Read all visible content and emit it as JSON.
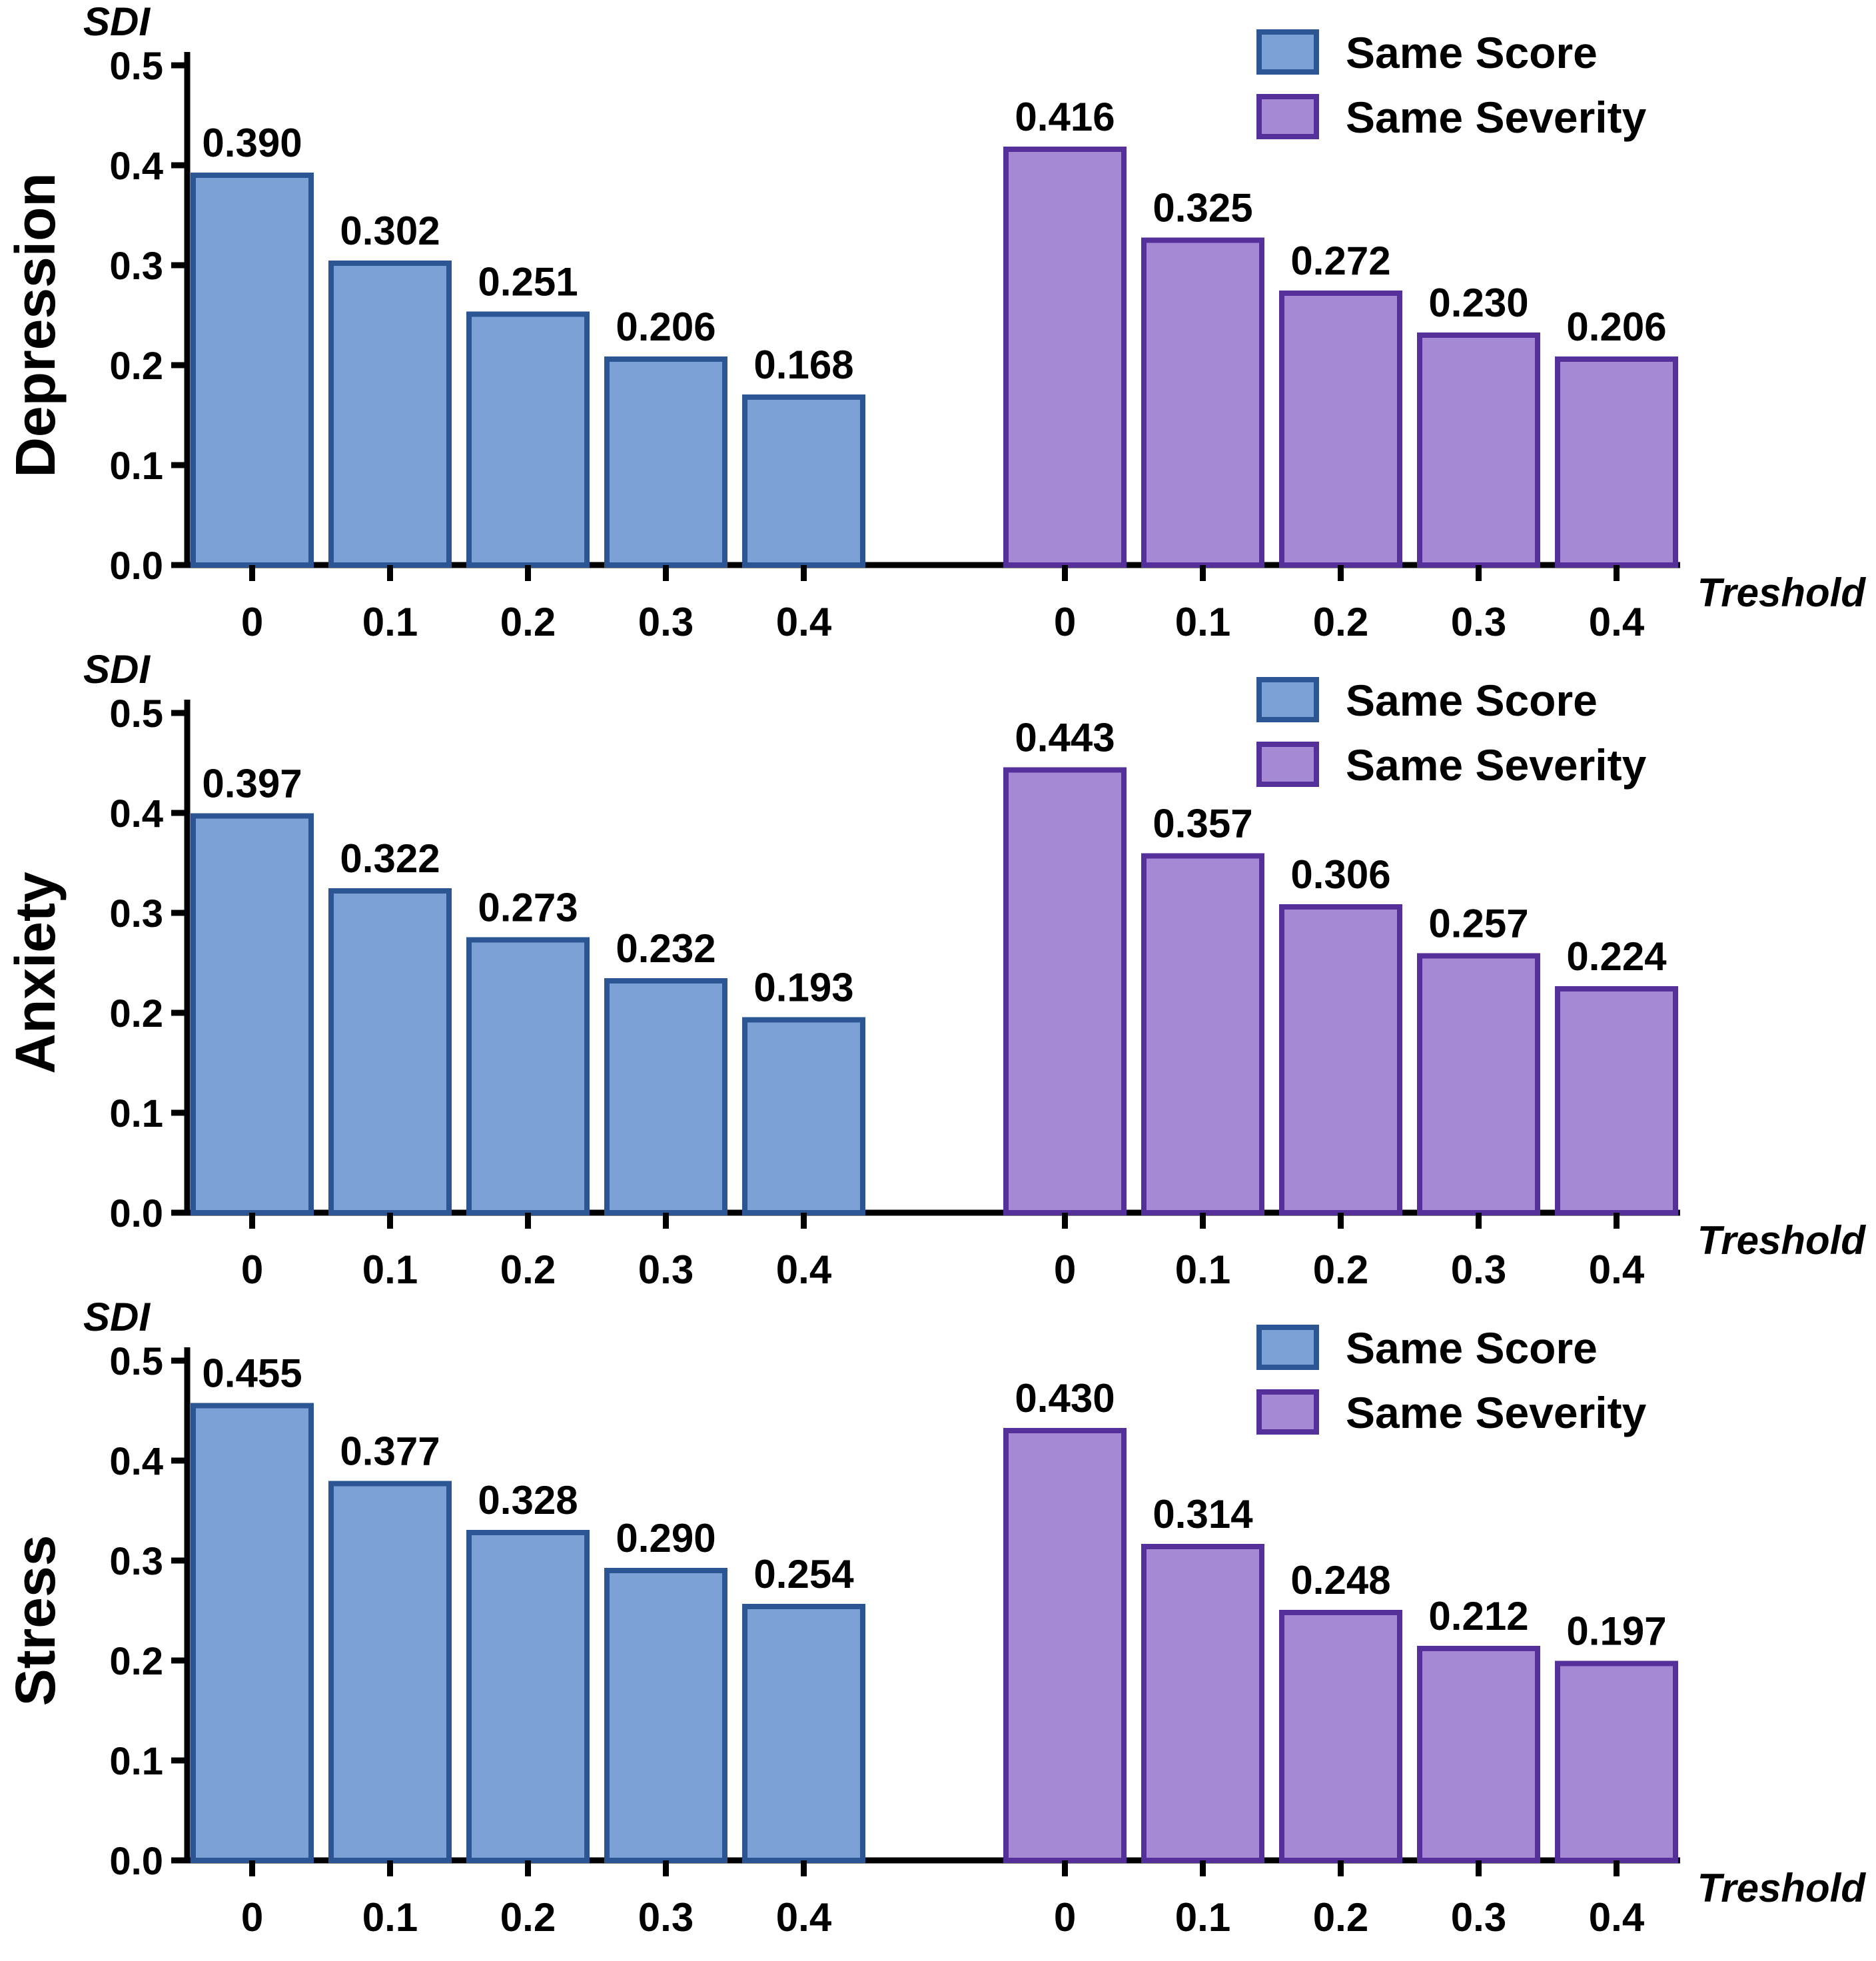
{
  "chart_data": [
    {
      "type": "bar",
      "title": "Depression",
      "ylabel": "SDI",
      "xlabel": "Treshold",
      "ylim": [
        0,
        0.5
      ],
      "yticks": [
        "0.0",
        "0.1",
        "0.2",
        "0.3",
        "0.4",
        "0.5"
      ],
      "categories": [
        "0",
        "0.1",
        "0.2",
        "0.3",
        "0.4"
      ],
      "series": [
        {
          "name": "Same Score",
          "values": [
            0.39,
            0.302,
            0.251,
            0.206,
            0.168
          ],
          "labels": [
            "0.390",
            "0.302",
            "0.251",
            "0.206",
            "0.168"
          ]
        },
        {
          "name": "Same Severity",
          "values": [
            0.416,
            0.325,
            0.272,
            0.23,
            0.206
          ],
          "labels": [
            "0.416",
            "0.325",
            "0.272",
            "0.230",
            "0.206"
          ]
        }
      ]
    },
    {
      "type": "bar",
      "title": "Anxiety",
      "ylabel": "SDI",
      "xlabel": "Treshold",
      "ylim": [
        0,
        0.5
      ],
      "yticks": [
        "0.0",
        "0.1",
        "0.2",
        "0.3",
        "0.4",
        "0.5"
      ],
      "categories": [
        "0",
        "0.1",
        "0.2",
        "0.3",
        "0.4"
      ],
      "series": [
        {
          "name": "Same Score",
          "values": [
            0.397,
            0.322,
            0.273,
            0.232,
            0.193
          ],
          "labels": [
            "0.397",
            "0.322",
            "0.273",
            "0.232",
            "0.193"
          ]
        },
        {
          "name": "Same Severity",
          "values": [
            0.443,
            0.357,
            0.306,
            0.257,
            0.224
          ],
          "labels": [
            "0.443",
            "0.357",
            "0.306",
            "0.257",
            "0.224"
          ]
        }
      ]
    },
    {
      "type": "bar",
      "title": "Stress",
      "ylabel": "SDI",
      "xlabel": "Treshold",
      "ylim": [
        0,
        0.5
      ],
      "yticks": [
        "0.0",
        "0.1",
        "0.2",
        "0.3",
        "0.4",
        "0.5"
      ],
      "categories": [
        "0",
        "0.1",
        "0.2",
        "0.3",
        "0.4"
      ],
      "series": [
        {
          "name": "Same Score",
          "values": [
            0.455,
            0.377,
            0.328,
            0.29,
            0.254
          ],
          "labels": [
            "0.455",
            "0.377",
            "0.328",
            "0.290",
            "0.254"
          ]
        },
        {
          "name": "Same Severity",
          "values": [
            0.43,
            0.314,
            0.248,
            0.212,
            0.197
          ],
          "labels": [
            "0.430",
            "0.314",
            "0.248",
            "0.212",
            "0.197"
          ]
        }
      ]
    }
  ],
  "colors": {
    "same_score_fill": "#7ba1d6",
    "same_score_stroke": "#2c5593",
    "same_severity_fill": "#a689d4",
    "same_severity_stroke": "#56309a"
  }
}
